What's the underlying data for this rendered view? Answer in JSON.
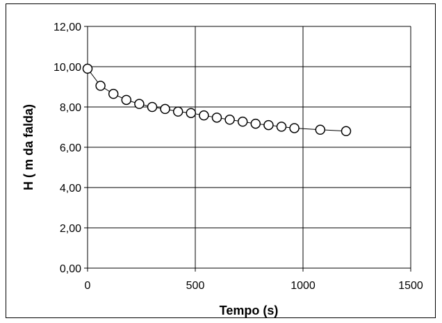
{
  "chart_data": {
    "type": "scatter",
    "title": "",
    "xlabel": "Tempo (s)",
    "ylabel": "H  ( m da falda)",
    "xlim": [
      0,
      1500
    ],
    "ylim": [
      0,
      12
    ],
    "xticks": [
      0,
      500,
      1000,
      1500
    ],
    "xtick_labels": [
      "0",
      "500",
      "1000",
      "1500"
    ],
    "yticks": [
      0,
      2,
      4,
      6,
      8,
      10,
      12
    ],
    "ytick_labels": [
      "0,00",
      "2,00",
      "4,00",
      "6,00",
      "8,00",
      "10,00",
      "12,00"
    ],
    "grid": true,
    "legend": "none",
    "marker": "open-circle",
    "line_color": "#000000",
    "marker_fill": "#ffffff",
    "series": [
      {
        "x": [
          0,
          60,
          120,
          180,
          240,
          300,
          360,
          420,
          480,
          540,
          600,
          660,
          720,
          780,
          840,
          900,
          960,
          1080,
          1200
        ],
        "y": [
          9.9,
          9.05,
          8.65,
          8.35,
          8.15,
          8.0,
          7.9,
          7.77,
          7.7,
          7.58,
          7.47,
          7.37,
          7.27,
          7.17,
          7.1,
          7.02,
          6.95,
          6.87,
          6.8
        ]
      }
    ]
  }
}
